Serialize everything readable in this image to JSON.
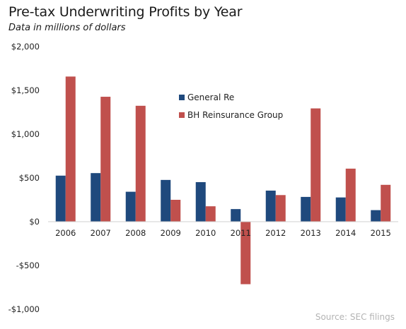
{
  "chart_data": {
    "type": "bar",
    "title": "Pre-tax Underwriting Profits by Year",
    "subtitle": "Data in millions of dollars",
    "source": "Source: SEC filings",
    "categories": [
      "2006",
      "2007",
      "2008",
      "2009",
      "2010",
      "2011",
      "2012",
      "2013",
      "2014",
      "2015"
    ],
    "series": [
      {
        "name": "General Re",
        "color": "#1f497d",
        "values": [
          526,
          555,
          342,
          477,
          452,
          144,
          355,
          283,
          277,
          132
        ]
      },
      {
        "name": "BH Reinsurance Group",
        "color": "#c0504d",
        "values": [
          1658,
          1427,
          1324,
          250,
          176,
          -714,
          304,
          1294,
          606,
          421
        ]
      }
    ],
    "ylim": [
      -1000,
      2000
    ],
    "yticks": [
      2000,
      1500,
      1000,
      500,
      0,
      -500,
      -1000
    ],
    "ytick_labels": [
      "$2,000",
      "$1,500",
      "$1,000",
      "$500",
      "$0",
      "-$500",
      "-$1,000"
    ],
    "legend_position": "center",
    "grid": false
  }
}
